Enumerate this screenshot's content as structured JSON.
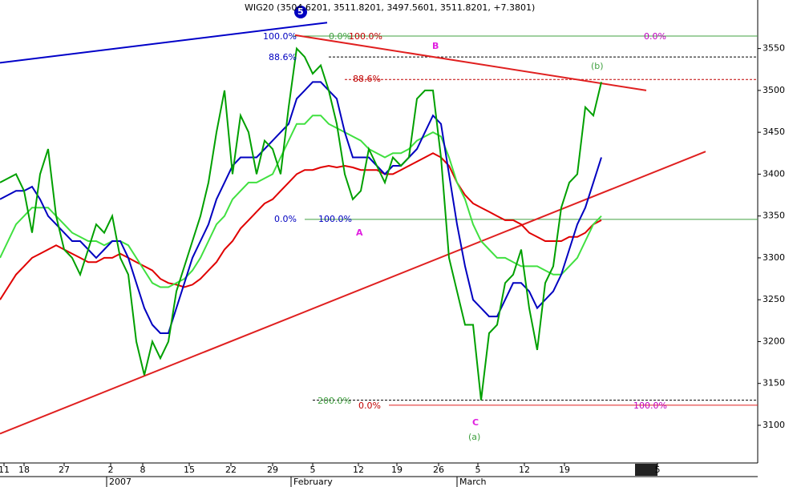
{
  "chart_data": {
    "type": "line",
    "title": "WIG20 (3504.6201, 3511.8201, 3497.5601, 3511.8201, +7.3801)",
    "x": [
      0,
      1,
      2,
      3,
      4,
      5,
      6,
      7,
      8,
      9,
      10,
      11,
      12,
      13,
      14,
      15,
      16,
      17,
      18,
      19,
      20,
      21,
      22,
      23,
      24,
      25,
      26,
      27,
      28,
      29,
      30,
      31,
      32,
      33,
      34,
      35,
      36,
      37,
      38,
      39,
      40,
      41,
      42,
      43,
      44,
      45,
      46,
      47,
      48,
      49,
      50,
      51,
      52,
      53,
      54,
      55,
      56,
      57,
      58,
      59,
      60,
      61,
      62,
      63,
      64,
      65,
      66,
      67,
      68,
      69,
      70,
      71,
      72,
      73,
      74,
      75
    ],
    "series": [
      {
        "color": "#00a000",
        "values": [
          3390,
          3395,
          3400,
          3380,
          3330,
          3400,
          3430,
          3350,
          3310,
          3300,
          3280,
          3310,
          3340,
          3330,
          3350,
          3300,
          3280,
          3200,
          3160,
          3200,
          3180,
          3200,
          3260,
          3290,
          3320,
          3350,
          3390,
          3450,
          3500,
          3400,
          3470,
          3450,
          3400,
          3440,
          3430,
          3400,
          3480,
          3550,
          3540,
          3520,
          3530,
          3500,
          3460,
          3400,
          3370,
          3380,
          3430,
          3410,
          3390,
          3420,
          3410,
          3420,
          3490,
          3500,
          3500,
          3420,
          3300,
          3260,
          3220,
          3220,
          3130,
          3210,
          3220,
          3270,
          3280,
          3310,
          3240,
          3190,
          3270,
          3290,
          3360,
          3390,
          3400,
          3480,
          3470,
          3510
        ]
      },
      {
        "color": "#0000c0",
        "values": [
          3370,
          3375,
          3380,
          3380,
          3385,
          3370,
          3350,
          3340,
          3330,
          3320,
          3320,
          3310,
          3300,
          3310,
          3320,
          3320,
          3300,
          3270,
          3240,
          3220,
          3210,
          3210,
          3240,
          3270,
          3300,
          3320,
          3340,
          3370,
          3390,
          3410,
          3420,
          3420,
          3420,
          3430,
          3440,
          3450,
          3460,
          3490,
          3500,
          3510,
          3510,
          3500,
          3490,
          3450,
          3420,
          3420,
          3420,
          3410,
          3400,
          3410,
          3410,
          3420,
          3430,
          3450,
          3470,
          3460,
          3400,
          3340,
          3290,
          3250,
          3240,
          3230,
          3230,
          3250,
          3270,
          3270,
          3260,
          3240,
          3250,
          3260,
          3280,
          3310,
          3340,
          3360,
          3390,
          3420
        ]
      },
      {
        "color": "#40e040",
        "values": [
          3300,
          3320,
          3340,
          3350,
          3360,
          3360,
          3360,
          3350,
          3340,
          3330,
          3325,
          3320,
          3320,
          3315,
          3320,
          3320,
          3315,
          3300,
          3285,
          3270,
          3265,
          3265,
          3270,
          3275,
          3285,
          3300,
          3320,
          3340,
          3350,
          3370,
          3380,
          3390,
          3390,
          3395,
          3400,
          3420,
          3440,
          3460,
          3460,
          3470,
          3470,
          3460,
          3455,
          3450,
          3445,
          3440,
          3430,
          3425,
          3420,
          3425,
          3425,
          3430,
          3440,
          3445,
          3450,
          3445,
          3420,
          3390,
          3370,
          3340,
          3320,
          3310,
          3300,
          3300,
          3295,
          3290,
          3290,
          3290,
          3285,
          3280,
          3280,
          3290,
          3300,
          3320,
          3340,
          3350
        ]
      },
      {
        "color": "#e00000",
        "values": [
          3250,
          3265,
          3280,
          3290,
          3300,
          3305,
          3310,
          3315,
          3310,
          3305,
          3300,
          3295,
          3295,
          3300,
          3300,
          3305,
          3300,
          3295,
          3290,
          3285,
          3275,
          3270,
          3268,
          3265,
          3268,
          3275,
          3285,
          3295,
          3310,
          3320,
          3335,
          3345,
          3355,
          3365,
          3370,
          3380,
          3390,
          3400,
          3405,
          3405,
          3408,
          3410,
          3408,
          3410,
          3408,
          3405,
          3405,
          3405,
          3400,
          3400,
          3405,
          3410,
          3415,
          3420,
          3425,
          3420,
          3410,
          3390,
          3375,
          3365,
          3360,
          3355,
          3350,
          3345,
          3345,
          3340,
          3330,
          3325,
          3320,
          3320,
          3320,
          3325,
          3325,
          3330,
          3340,
          3345
        ]
      }
    ],
    "xlim": [
      0,
      94.5
    ],
    "ylim": [
      3055,
      3608
    ],
    "yticks": [
      3100,
      3150,
      3200,
      3250,
      3300,
      3350,
      3400,
      3450,
      3500,
      3550
    ],
    "xticks": [
      {
        "value": 0.5,
        "label": "11"
      },
      {
        "value": 3,
        "label": "18"
      },
      {
        "value": 8,
        "label": "27"
      },
      {
        "value": 13.8,
        "label": "2"
      },
      {
        "value": 17.8,
        "label": "8"
      },
      {
        "value": 23.6,
        "label": "15"
      },
      {
        "value": 28.8,
        "label": "22"
      },
      {
        "value": 34,
        "label": "29"
      },
      {
        "value": 39,
        "label": "5"
      },
      {
        "value": 44.7,
        "label": "12"
      },
      {
        "value": 49.5,
        "label": "19"
      },
      {
        "value": 54.7,
        "label": "26"
      },
      {
        "value": 59.6,
        "label": "5"
      },
      {
        "value": 65.4,
        "label": "12"
      },
      {
        "value": 70.4,
        "label": "19"
      },
      {
        "value": 82,
        "label": "5"
      }
    ],
    "periods": [
      {
        "value": 13.3,
        "label": "2007"
      },
      {
        "value": 36.3,
        "label": "February"
      },
      {
        "value": 57,
        "label": "March"
      }
    ],
    "trendlines": [
      {
        "color": "#0000c8",
        "points": [
          [
            0,
            3533
          ],
          [
            40.8,
            3581
          ]
        ]
      },
      {
        "color": "#e02020",
        "points": [
          [
            36.8,
            3566
          ],
          [
            80.6,
            3500
          ]
        ]
      },
      {
        "color": "#e02020",
        "points": [
          [
            0,
            3090
          ],
          [
            88,
            3427
          ]
        ]
      }
    ],
    "levels": [
      {
        "value": 3565,
        "color": "#40a040",
        "from": 36.5
      },
      {
        "value": 3540,
        "color": "#000000",
        "from": 41,
        "dashed": true
      },
      {
        "value": 3513,
        "color": "#c00000",
        "from": 43,
        "dashed": true
      },
      {
        "value": 3346,
        "color": "#40a040",
        "from": 38
      },
      {
        "value": 3130,
        "color": "#000000",
        "from": 39,
        "dashed": true
      },
      {
        "value": 3124,
        "color": "#e02020",
        "from": 48.5
      }
    ],
    "annotations": [
      {
        "text": "100.0%",
        "color": "#0000c0"
      },
      {
        "text": "0.0%",
        "color": "#40a040"
      },
      {
        "text": "100.0%",
        "color": "#c00000"
      },
      {
        "text": "0.0%",
        "color": "#c000c0"
      },
      {
        "text": "88.6%",
        "color": "#0000c0"
      },
      {
        "text": "88.6%",
        "color": "#c00000"
      },
      {
        "text": "0.0%",
        "color": "#0000c0"
      },
      {
        "text": "100.0%",
        "color": "#0000c0"
      },
      {
        "text": "200.0%",
        "color": "#40a040"
      },
      {
        "text": "0.0%",
        "color": "#c00000"
      },
      {
        "text": "100.0%",
        "color": "#c000c0"
      },
      {
        "text": "A",
        "color": "#e020e0"
      },
      {
        "text": "B",
        "color": "#e020e0"
      },
      {
        "text": "C",
        "color": "#e020e0"
      },
      {
        "text": "(a)",
        "color": "#40a040"
      },
      {
        "text": "(b)",
        "color": "#40a040"
      },
      {
        "text": "5",
        "color": "#ffffff"
      }
    ]
  }
}
